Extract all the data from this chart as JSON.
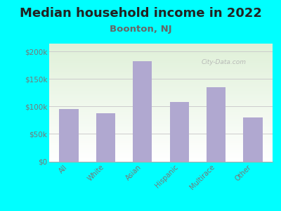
{
  "title": "Median household income in 2022",
  "subtitle": "Boonton, NJ",
  "categories": [
    "All",
    "White",
    "Asian",
    "Hispanic",
    "Multirace",
    "Other"
  ],
  "values": [
    95000,
    88000,
    183000,
    108000,
    135000,
    80000
  ],
  "bar_color": "#b0a8d0",
  "background_color": "#00FFFF",
  "plot_bg_top": "#dff0d8",
  "plot_bg_bottom": "#ffffff",
  "title_fontsize": 13,
  "subtitle_fontsize": 9.5,
  "subtitle_color": "#666666",
  "ylabel_ticks": [
    0,
    50000,
    100000,
    150000,
    200000
  ],
  "ylabel_labels": [
    "$0",
    "$50k",
    "$100k",
    "$150k",
    "$200k"
  ],
  "ylim": [
    0,
    215000
  ],
  "watermark": "City-Data.com",
  "tick_label_color": "#777777",
  "grid_color": "#cccccc",
  "spine_color": "#aaaaaa"
}
